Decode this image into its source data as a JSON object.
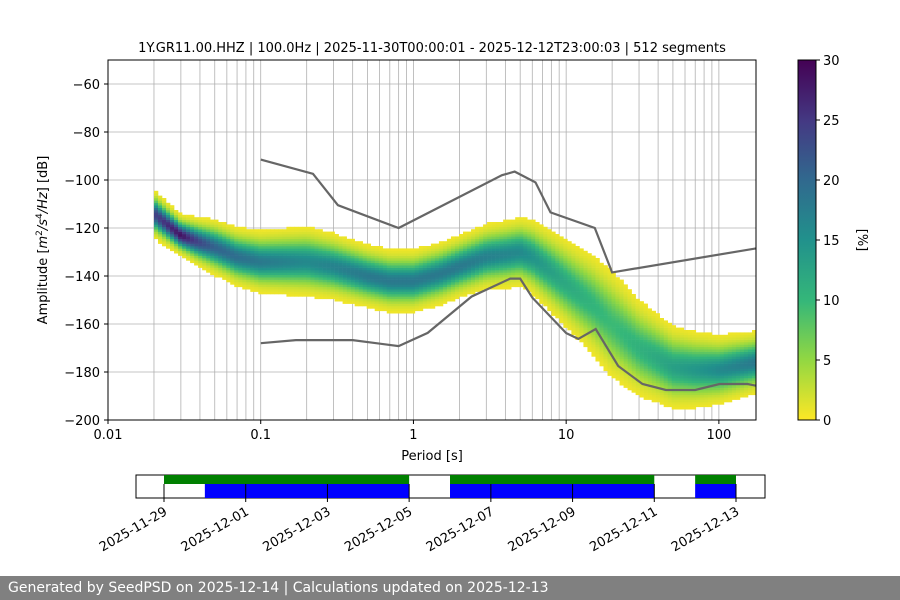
{
  "footer": {
    "text": "Generated by SeedPSD on 2025-12-14 | Calculations updated on 2025-12-13"
  },
  "chart_data": {
    "type": "heatmap",
    "title": "1Y.GR11.00.HHZ | 100.0Hz | 2025-11-30T00:00:01 - 2025-12-12T23:00:03 | 512 segments",
    "xlabel": "Period [s]",
    "ylabel": "Amplitude [m²/s⁴/Hz] [dB]",
    "x_scale": "log",
    "xlim": [
      0.01,
      175
    ],
    "ylim": [
      -200,
      -50
    ],
    "x_ticks": [
      0.01,
      0.1,
      1,
      10,
      100
    ],
    "x_tick_labels": [
      "0.01",
      "0.1",
      "1",
      "10",
      "100"
    ],
    "y_ticks": [
      -200,
      -180,
      -160,
      -140,
      -120,
      -100,
      -80,
      -60
    ],
    "y_tick_labels": [
      "−200",
      "−180",
      "−160",
      "−140",
      "−120",
      "−100",
      "−80",
      "−60"
    ],
    "grid": true,
    "colorbar": {
      "label": "[%]",
      "range": [
        0,
        30
      ],
      "ticks": [
        0,
        5,
        10,
        15,
        20,
        25,
        30
      ],
      "colormap": "viridis_r"
    },
    "psd_mode": {
      "name": "mode",
      "points": [
        [
          0.02,
          -114
        ],
        [
          0.025,
          -119
        ],
        [
          0.03,
          -123
        ],
        [
          0.04,
          -126
        ],
        [
          0.05,
          -128
        ],
        [
          0.07,
          -132
        ],
        [
          0.1,
          -134
        ],
        [
          0.15,
          -134
        ],
        [
          0.2,
          -134
        ],
        [
          0.3,
          -136
        ],
        [
          0.5,
          -140
        ],
        [
          0.7,
          -142
        ],
        [
          1,
          -142
        ],
        [
          1.5,
          -139
        ],
        [
          2,
          -136
        ],
        [
          3,
          -132
        ],
        [
          4,
          -131
        ],
        [
          5,
          -130
        ],
        [
          6,
          -132
        ],
        [
          8,
          -138
        ],
        [
          10,
          -143
        ],
        [
          15,
          -152
        ],
        [
          20,
          -160
        ],
        [
          30,
          -170
        ],
        [
          50,
          -178
        ],
        [
          70,
          -179
        ],
        [
          100,
          -179
        ],
        [
          175,
          -176
        ]
      ]
    },
    "psd_spread": {
      "name": "spread",
      "points": [
        [
          0.02,
          12
        ],
        [
          0.03,
          10
        ],
        [
          0.05,
          14
        ],
        [
          0.1,
          16
        ],
        [
          0.2,
          18
        ],
        [
          0.5,
          16
        ],
        [
          1,
          16
        ],
        [
          2,
          16
        ],
        [
          5,
          18
        ],
        [
          10,
          24
        ],
        [
          20,
          30
        ],
        [
          50,
          22
        ],
        [
          100,
          18
        ],
        [
          175,
          16
        ]
      ]
    },
    "noise_models": [
      {
        "name": "NHNM",
        "points": [
          [
            0.1,
            -91.5
          ],
          [
            0.22,
            -97.4
          ],
          [
            0.32,
            -110.5
          ],
          [
            0.8,
            -120
          ],
          [
            3.8,
            -98
          ],
          [
            4.6,
            -96.5
          ],
          [
            6.3,
            -101
          ],
          [
            7.9,
            -113.5
          ],
          [
            15.4,
            -120
          ],
          [
            20,
            -138.5
          ],
          [
            175,
            -128.5
          ]
        ]
      },
      {
        "name": "NLNM",
        "points": [
          [
            0.1,
            -168
          ],
          [
            0.17,
            -166.7
          ],
          [
            0.4,
            -166.7
          ],
          [
            0.8,
            -169.2
          ],
          [
            1.24,
            -163.7
          ],
          [
            2.4,
            -148.6
          ],
          [
            4.3,
            -141.1
          ],
          [
            5,
            -141.1
          ],
          [
            6,
            -149
          ],
          [
            10,
            -163.8
          ],
          [
            12,
            -166.2
          ],
          [
            15.6,
            -162.1
          ],
          [
            21.9,
            -177.5
          ],
          [
            31.6,
            -185
          ],
          [
            45,
            -187.5
          ],
          [
            70,
            -187.5
          ],
          [
            101,
            -185
          ],
          [
            154,
            -185
          ],
          [
            175,
            -185.7
          ]
        ]
      }
    ],
    "timeline": {
      "start": "2025-11-29",
      "end": "2025-12-13",
      "tick_labels": [
        "2025-11-29",
        "2025-12-01",
        "2025-12-03",
        "2025-12-05",
        "2025-12-07",
        "2025-12-09",
        "2025-12-11",
        "2025-12-13"
      ],
      "data_available": [
        [
          "2025-11-29T00:00",
          "2025-12-05T00:00"
        ],
        [
          "2025-12-06T00:00",
          "2025-12-11T00:00"
        ],
        [
          "2025-12-12T00:00",
          "2025-12-13T00:00"
        ]
      ],
      "psd_segments": [
        [
          "2025-11-30T00:00",
          "2025-12-05T00:00"
        ],
        [
          "2025-12-06T00:00",
          "2025-12-11T00:00"
        ],
        [
          "2025-12-12T00:00",
          "2025-12-13T00:00"
        ]
      ],
      "colors": {
        "available": "#008000",
        "psd": "#0000ff"
      }
    }
  }
}
